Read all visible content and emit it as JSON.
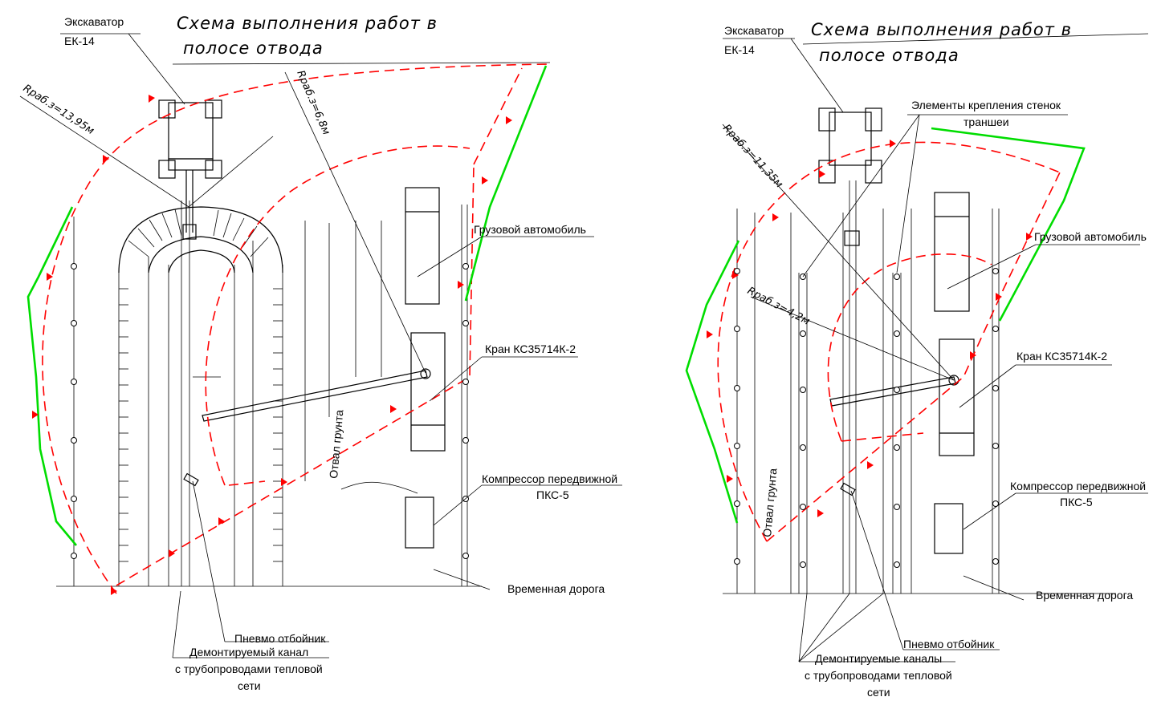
{
  "colors": {
    "danger_zone": "#ff0000",
    "fence": "#00dd00",
    "ink": "#000000"
  },
  "schemes": [
    {
      "title_line1": "Схема выполнения работ в",
      "title_line2": "полосе отвода",
      "excavator_line1": "Экскаватор",
      "excavator_line2": "ЕК-14",
      "radius_excavator": "Rраб.з=13,95м",
      "radius_crane": "Rраб.з=6,8м",
      "truck": "Грузовой автомобиль",
      "crane": "Кран КС35714К-2",
      "spoil": "Отвал грунта",
      "compressor_line1": "Компрессор передвижной",
      "compressor_line2": "ПКС-5",
      "road": "Временная дорога",
      "breaker": "Пневмо отбойник",
      "channel_line1": "Демонтируемый канал",
      "channel_line2": "с трубопроводами тепловой",
      "channel_line3": "сети"
    },
    {
      "title_line1": "Схема выполнения работ в",
      "title_line2": "полосе отвода",
      "excavator_line1": "Экскаватор",
      "excavator_line2": "ЕК-14",
      "shoring_line1": "Элементы крепления стенок",
      "shoring_line2": "траншеи",
      "radius_excavator": "Rраб.з=11,35м",
      "radius_crane": "Rраб.з=4,2м",
      "truck": "Грузовой автомобиль",
      "crane": "Кран КС35714К-2",
      "spoil": "Отвал грунта",
      "compressor_line1": "Компрессор передвижной",
      "compressor_line2": "ПКС-5",
      "road": "Временная дорога",
      "breaker": "Пневмо отбойник",
      "channel_line1": "Демонтируемые каналы",
      "channel_line2": "с трубопроводами тепловой",
      "channel_line3": "сети"
    }
  ]
}
